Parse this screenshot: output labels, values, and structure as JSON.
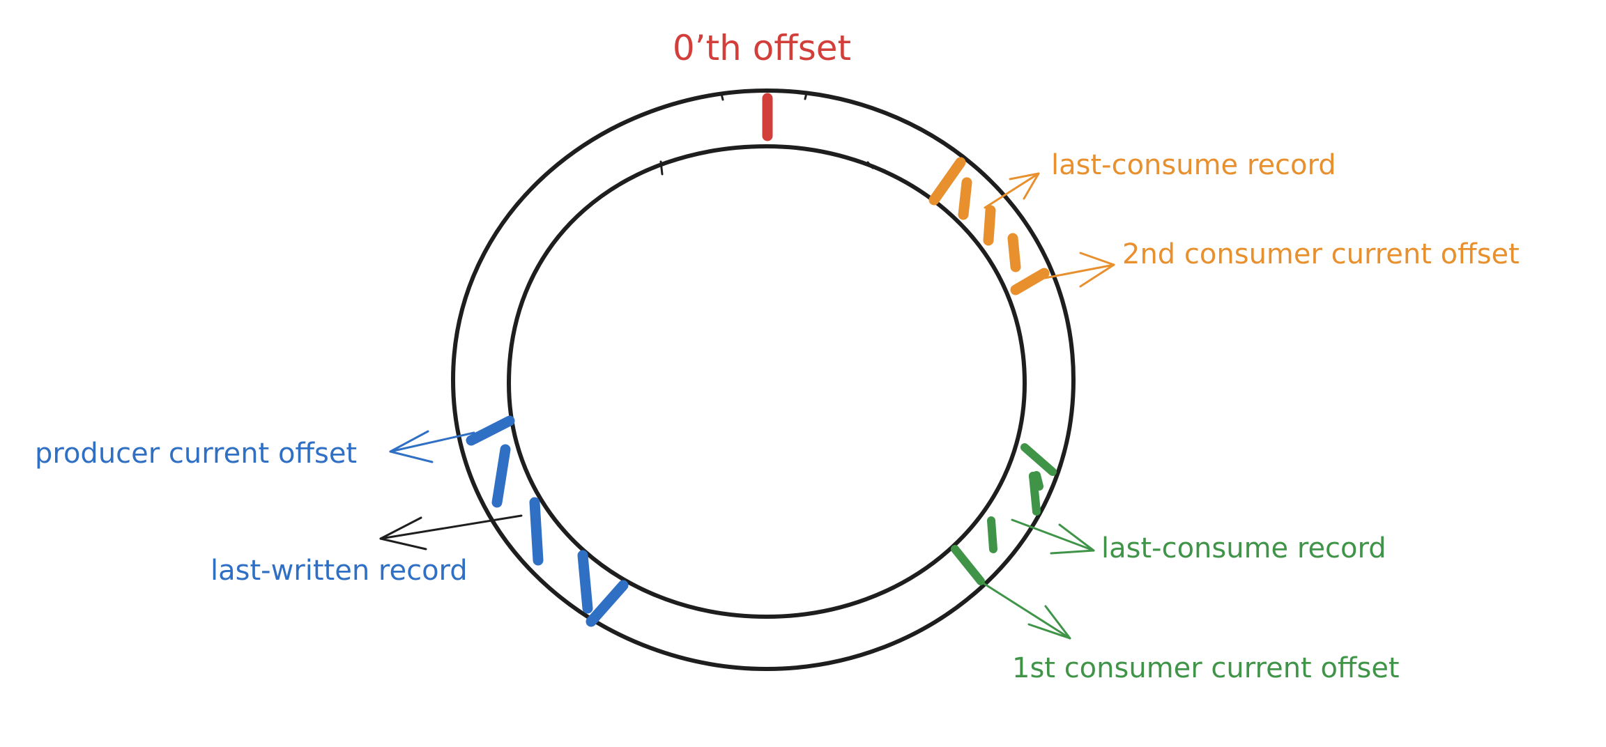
{
  "colors": {
    "ring": "#1e1e1e",
    "zero": "#d23f3b",
    "orange": "#e8902e",
    "blue": "#2f6fc4",
    "green": "#3f9448",
    "black": "#1e1e1e"
  },
  "labels": {
    "zero_offset": "0’th offset",
    "orange_last_consume": "last-consume record",
    "second_consumer_offset": "2nd consumer current offset",
    "producer_offset": "producer current offset",
    "last_written": "last-written record",
    "green_last_consume": "last-consume record",
    "first_consumer_offset": "1st consumer current offset"
  }
}
